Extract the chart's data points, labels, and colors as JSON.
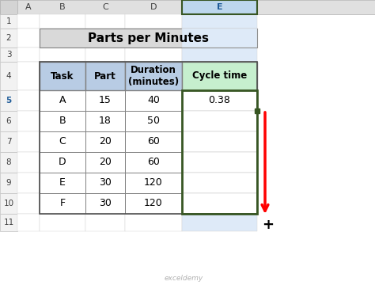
{
  "title": "Parts per Minutes",
  "col_headers": [
    "Task",
    "Part",
    "Duration\n(minutes)",
    "Cycle time"
  ],
  "rows": [
    [
      "A",
      "15",
      "40",
      "0.38"
    ],
    [
      "B",
      "18",
      "50",
      ""
    ],
    [
      "C",
      "20",
      "60",
      ""
    ],
    [
      "D",
      "20",
      "60",
      ""
    ],
    [
      "E",
      "30",
      "120",
      ""
    ],
    [
      "F",
      "30",
      "120",
      ""
    ]
  ],
  "title_bg": "#d9d9d9",
  "header_bg_left": "#b8cce4",
  "header_bg_right": "#c6efce",
  "green_border": "#375623",
  "red_arrow_color": "#ff0000",
  "col_header_bg": "#e2edf8",
  "col_e_header_bg": "#bdd7ee",
  "col_e_header_text": "#1f5c99",
  "row5_num_color": "#1f5c99",
  "watermark_color": "#b0b0b0"
}
